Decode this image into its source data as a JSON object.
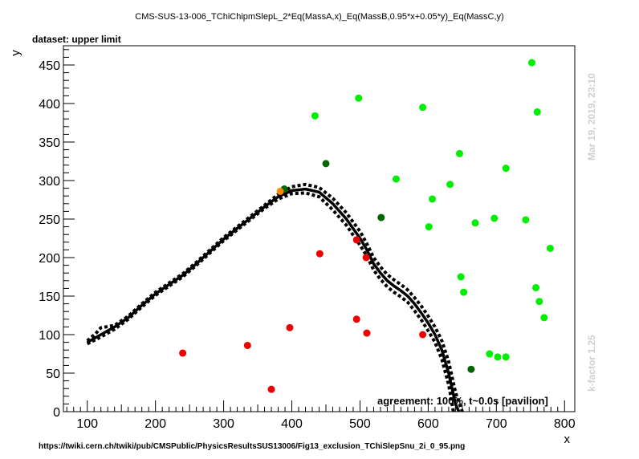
{
  "header": {
    "title": "CMS-SUS-13-006_TChiChipmSlepL_2*Eq(MassA,x)_Eq(MassB,0.95*x+0.05*y)_Eq(MassC,y)",
    "dataset_label": "dataset: upper limit",
    "agreement": "agreement: 100%, t~0.0s [pavilion]",
    "timestamp": "Mar 19, 2019, 23:10",
    "kfactor": "k-factor 1.25",
    "source_url": "https://twiki.cern.ch/twiki/pub/CMSPublic/PhysicsResultsSUS13006/Fig13_exclusion_TChiSlepSnu_2i_0_95.png"
  },
  "chart_data": {
    "type": "scatter",
    "xlabel": "x",
    "ylabel": "y",
    "xlim": [
      65,
      815
    ],
    "ylim": [
      0,
      475
    ],
    "x_ticks": [
      100,
      200,
      300,
      400,
      500,
      600,
      700,
      800
    ],
    "y_ticks": [
      0,
      50,
      100,
      150,
      200,
      250,
      300,
      350,
      400,
      450
    ],
    "grid": false,
    "colors": {
      "allowed": "#00ee00",
      "excluded": "#ee0000",
      "borderline": "#006600",
      "marginal": "#ff8800",
      "curve": "#000000"
    },
    "points": [
      {
        "x": 752,
        "y": 453,
        "c": "allowed"
      },
      {
        "x": 498,
        "y": 407,
        "c": "allowed"
      },
      {
        "x": 592,
        "y": 395,
        "c": "allowed"
      },
      {
        "x": 760,
        "y": 389,
        "c": "allowed"
      },
      {
        "x": 434,
        "y": 384,
        "c": "allowed"
      },
      {
        "x": 646,
        "y": 335,
        "c": "allowed"
      },
      {
        "x": 450,
        "y": 322,
        "c": "borderline"
      },
      {
        "x": 714,
        "y": 316,
        "c": "allowed"
      },
      {
        "x": 553,
        "y": 302,
        "c": "allowed"
      },
      {
        "x": 632,
        "y": 295,
        "c": "allowed"
      },
      {
        "x": 389,
        "y": 289,
        "c": "borderline"
      },
      {
        "x": 383,
        "y": 286,
        "c": "marginal"
      },
      {
        "x": 606,
        "y": 276,
        "c": "allowed"
      },
      {
        "x": 531,
        "y": 252,
        "c": "borderline"
      },
      {
        "x": 697,
        "y": 251,
        "c": "allowed"
      },
      {
        "x": 743,
        "y": 249,
        "c": "allowed"
      },
      {
        "x": 669,
        "y": 245,
        "c": "allowed"
      },
      {
        "x": 601,
        "y": 240,
        "c": "allowed"
      },
      {
        "x": 495,
        "y": 223,
        "c": "excluded"
      },
      {
        "x": 779,
        "y": 212,
        "c": "allowed"
      },
      {
        "x": 441,
        "y": 205,
        "c": "excluded"
      },
      {
        "x": 509,
        "y": 200,
        "c": "excluded"
      },
      {
        "x": 648,
        "y": 175,
        "c": "allowed"
      },
      {
        "x": 758,
        "y": 161,
        "c": "allowed"
      },
      {
        "x": 652,
        "y": 155,
        "c": "allowed"
      },
      {
        "x": 763,
        "y": 143,
        "c": "allowed"
      },
      {
        "x": 770,
        "y": 122,
        "c": "allowed"
      },
      {
        "x": 495,
        "y": 120,
        "c": "excluded"
      },
      {
        "x": 397,
        "y": 109,
        "c": "excluded"
      },
      {
        "x": 510,
        "y": 102,
        "c": "excluded"
      },
      {
        "x": 592,
        "y": 100,
        "c": "excluded"
      },
      {
        "x": 335,
        "y": 86,
        "c": "excluded"
      },
      {
        "x": 240,
        "y": 76,
        "c": "excluded"
      },
      {
        "x": 690,
        "y": 75,
        "c": "allowed"
      },
      {
        "x": 702,
        "y": 71,
        "c": "allowed"
      },
      {
        "x": 714,
        "y": 71,
        "c": "allowed"
      },
      {
        "x": 663,
        "y": 55,
        "c": "borderline"
      },
      {
        "x": 370,
        "y": 29,
        "c": "excluded"
      }
    ],
    "curves": [
      {
        "style": "solid",
        "points": [
          [
            100,
            90
          ],
          [
            120,
            100
          ],
          [
            140,
            110
          ],
          [
            160,
            122
          ],
          [
            180,
            138
          ],
          [
            200,
            153
          ],
          [
            220,
            165
          ],
          [
            240,
            177
          ],
          [
            260,
            192
          ],
          [
            280,
            208
          ],
          [
            300,
            224
          ],
          [
            320,
            238
          ],
          [
            340,
            252
          ],
          [
            360,
            266
          ],
          [
            380,
            279
          ],
          [
            400,
            287
          ],
          [
            420,
            289
          ],
          [
            440,
            285
          ],
          [
            460,
            270
          ],
          [
            480,
            250
          ],
          [
            500,
            225
          ],
          [
            510,
            210
          ],
          [
            520,
            192
          ],
          [
            530,
            180
          ],
          [
            540,
            170
          ],
          [
            550,
            163
          ],
          [
            560,
            157
          ],
          [
            570,
            150
          ],
          [
            580,
            140
          ],
          [
            590,
            128
          ],
          [
            600,
            115
          ],
          [
            610,
            100
          ],
          [
            620,
            80
          ],
          [
            630,
            50
          ],
          [
            640,
            10
          ],
          [
            645,
            0
          ]
        ]
      },
      {
        "style": "dotted",
        "points": [
          [
            100,
            92
          ],
          [
            112,
            101
          ],
          [
            120,
            109
          ],
          [
            140,
            112
          ],
          [
            160,
            124
          ],
          [
            180,
            140
          ],
          [
            200,
            155
          ],
          [
            220,
            167
          ],
          [
            240,
            179
          ],
          [
            260,
            194
          ],
          [
            280,
            210
          ],
          [
            300,
            226
          ],
          [
            320,
            240
          ],
          [
            340,
            254
          ],
          [
            360,
            268
          ],
          [
            380,
            282
          ],
          [
            400,
            292
          ],
          [
            420,
            295
          ],
          [
            440,
            291
          ],
          [
            460,
            277
          ],
          [
            480,
            258
          ],
          [
            500,
            234
          ],
          [
            510,
            218
          ],
          [
            520,
            200
          ],
          [
            530,
            188
          ],
          [
            540,
            178
          ],
          [
            550,
            171
          ],
          [
            560,
            165
          ],
          [
            570,
            158
          ],
          [
            580,
            148
          ],
          [
            590,
            137
          ],
          [
            600,
            124
          ],
          [
            610,
            110
          ],
          [
            620,
            92
          ],
          [
            630,
            65
          ],
          [
            640,
            25
          ],
          [
            650,
            0
          ]
        ]
      },
      {
        "style": "dotted",
        "points": [
          [
            100,
            88
          ],
          [
            120,
            97
          ],
          [
            140,
            107
          ],
          [
            160,
            120
          ],
          [
            180,
            136
          ],
          [
            200,
            151
          ],
          [
            220,
            163
          ],
          [
            240,
            175
          ],
          [
            260,
            190
          ],
          [
            280,
            206
          ],
          [
            300,
            222
          ],
          [
            320,
            236
          ],
          [
            340,
            250
          ],
          [
            360,
            264
          ],
          [
            380,
            276
          ],
          [
            400,
            283
          ],
          [
            420,
            284
          ],
          [
            440,
            279
          ],
          [
            460,
            262
          ],
          [
            480,
            242
          ],
          [
            500,
            216
          ],
          [
            510,
            202
          ],
          [
            520,
            184
          ],
          [
            530,
            172
          ],
          [
            540,
            162
          ],
          [
            550,
            155
          ],
          [
            560,
            149
          ],
          [
            570,
            142
          ],
          [
            580,
            131
          ],
          [
            590,
            119
          ],
          [
            600,
            105
          ],
          [
            610,
            90
          ],
          [
            620,
            68
          ],
          [
            630,
            35
          ],
          [
            637,
            0
          ]
        ]
      }
    ]
  }
}
